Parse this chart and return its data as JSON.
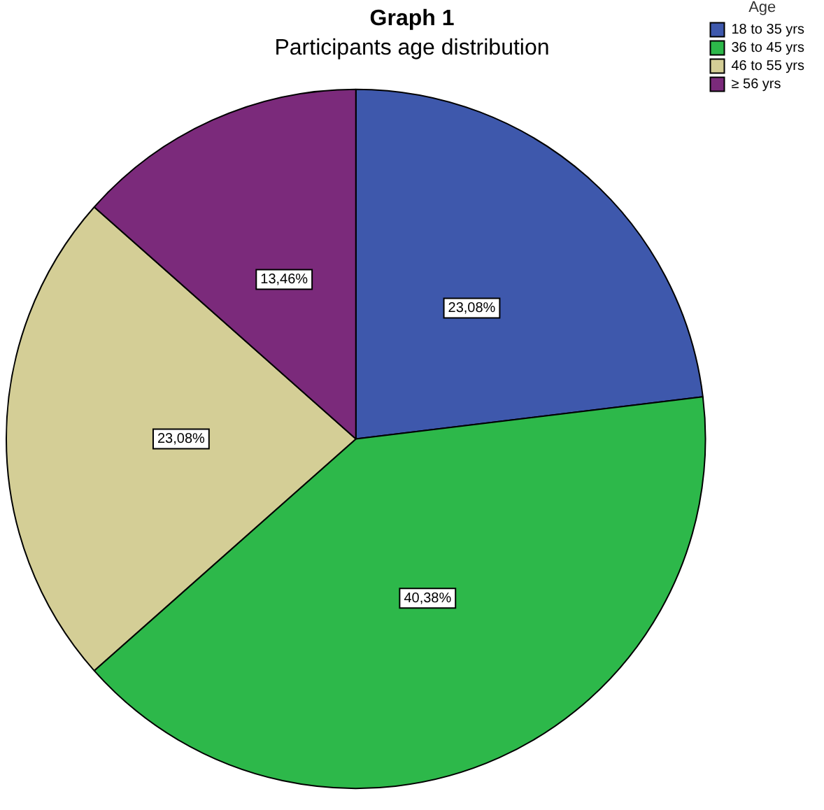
{
  "chart_data": {
    "type": "pie",
    "title": "Graph 1",
    "subtitle": "Participants age distribution",
    "legend_title": "Age",
    "legend": "top right",
    "categories": [
      "18 to 35 yrs",
      "36 to 45 yrs",
      "46 to 55 yrs",
      "≥ 56 yrs"
    ],
    "values": [
      23.08,
      40.38,
      23.08,
      13.46
    ],
    "colors": [
      "#3e58ac",
      "#2db84a",
      "#d4ce96",
      "#7b2a7b"
    ],
    "value_labels": [
      "23,08%",
      "40,38%",
      "23,08%",
      "13,46%"
    ]
  }
}
